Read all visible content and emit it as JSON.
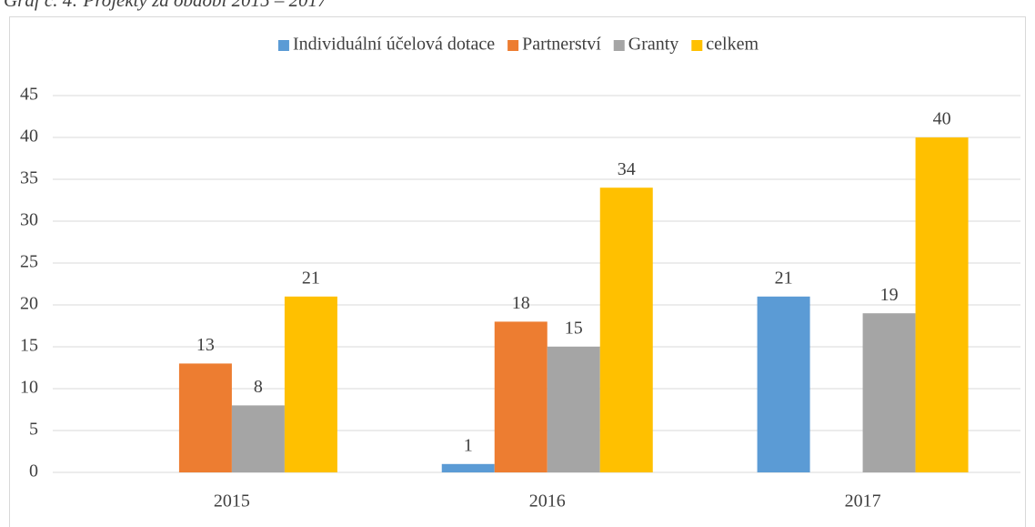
{
  "chart_data": {
    "type": "bar",
    "title": "Graf č. 4: Projekty za období 2015 – 2017",
    "categories": [
      "2015",
      "2016",
      "2017"
    ],
    "series": [
      {
        "name": "Individuální účelová dotace",
        "color": "#5b9bd5",
        "values": [
          null,
          1,
          21
        ]
      },
      {
        "name": "Partnerství",
        "color": "#ed7d31",
        "values": [
          13,
          18,
          null
        ]
      },
      {
        "name": "Granty",
        "color": "#a5a5a5",
        "values": [
          8,
          15,
          19
        ]
      },
      {
        "name": "celkem",
        "color": "#ffc000",
        "values": [
          21,
          34,
          40
        ]
      }
    ],
    "ylim": [
      0,
      45
    ],
    "yticks": [
      0,
      5,
      10,
      15,
      20,
      25,
      30,
      35,
      40,
      45
    ],
    "grid": true,
    "legend": "top"
  }
}
